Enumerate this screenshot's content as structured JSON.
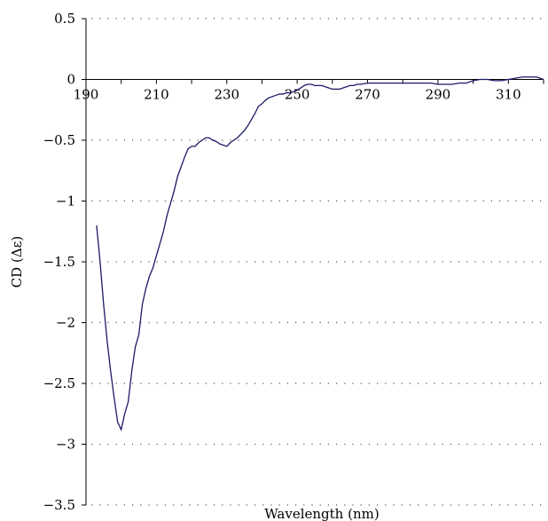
{
  "chart_data": {
    "type": "line",
    "xlabel": "Wavelength (nm)",
    "ylabel": "CD (Δε)",
    "xlim": [
      190,
      320
    ],
    "ylim": [
      -3.5,
      0.5
    ],
    "x_ticks": [
      190,
      210,
      230,
      250,
      270,
      290,
      310
    ],
    "y_ticks": [
      0.5,
      0,
      -0.5,
      -1,
      -1.5,
      -2,
      -2.5,
      -3,
      -3.5
    ],
    "y_tick_labels": [
      "0.5",
      "0",
      "−0.5",
      "−1",
      "−1.5",
      "−2",
      "−2.5",
      "−3",
      "−3.5"
    ],
    "grid": "horizontal dotted",
    "line_color": "#1a1a66",
    "series": [
      {
        "x": [
          193,
          194,
          195,
          196,
          197,
          198,
          199,
          200,
          201,
          202,
          203,
          204,
          205,
          206,
          207,
          208,
          209,
          210,
          211,
          212,
          213,
          214,
          215,
          216,
          217,
          218,
          219,
          220,
          221,
          222,
          223,
          224,
          225,
          226,
          227,
          228,
          229,
          230,
          231,
          232,
          233,
          234,
          235,
          236,
          237,
          238,
          239,
          240,
          241,
          242,
          243,
          244,
          245,
          246,
          247,
          248,
          249,
          250,
          251,
          252,
          253,
          254,
          255,
          256,
          257,
          258,
          259,
          260,
          261,
          262,
          263,
          264,
          265,
          266,
          267,
          268,
          270,
          272,
          275,
          278,
          280,
          282,
          284,
          286,
          288,
          290,
          292,
          294,
          296,
          298,
          300,
          302,
          304,
          306,
          308,
          310,
          312,
          314,
          316,
          318,
          320
        ],
        "values": [
          -1.2,
          -1.5,
          -1.85,
          -2.15,
          -2.4,
          -2.62,
          -2.82,
          -2.88,
          -2.75,
          -2.65,
          -2.4,
          -2.2,
          -2.1,
          -1.85,
          -1.72,
          -1.62,
          -1.55,
          -1.45,
          -1.35,
          -1.25,
          -1.12,
          -1.02,
          -0.92,
          -0.8,
          -0.72,
          -0.64,
          -0.57,
          -0.55,
          -0.55,
          -0.52,
          -0.5,
          -0.48,
          -0.48,
          -0.5,
          -0.51,
          -0.53,
          -0.54,
          -0.55,
          -0.52,
          -0.5,
          -0.48,
          -0.45,
          -0.42,
          -0.38,
          -0.33,
          -0.28,
          -0.22,
          -0.2,
          -0.17,
          -0.15,
          -0.14,
          -0.13,
          -0.12,
          -0.12,
          -0.11,
          -0.11,
          -0.1,
          -0.09,
          -0.07,
          -0.05,
          -0.04,
          -0.04,
          -0.05,
          -0.05,
          -0.05,
          -0.06,
          -0.07,
          -0.08,
          -0.08,
          -0.08,
          -0.07,
          -0.06,
          -0.05,
          -0.05,
          -0.04,
          -0.04,
          -0.03,
          -0.03,
          -0.03,
          -0.03,
          -0.03,
          -0.03,
          -0.03,
          -0.03,
          -0.03,
          -0.04,
          -0.04,
          -0.04,
          -0.03,
          -0.03,
          -0.01,
          0.0,
          0.0,
          -0.01,
          -0.01,
          0.0,
          0.01,
          0.02,
          0.02,
          0.02,
          0.0
        ]
      }
    ]
  }
}
